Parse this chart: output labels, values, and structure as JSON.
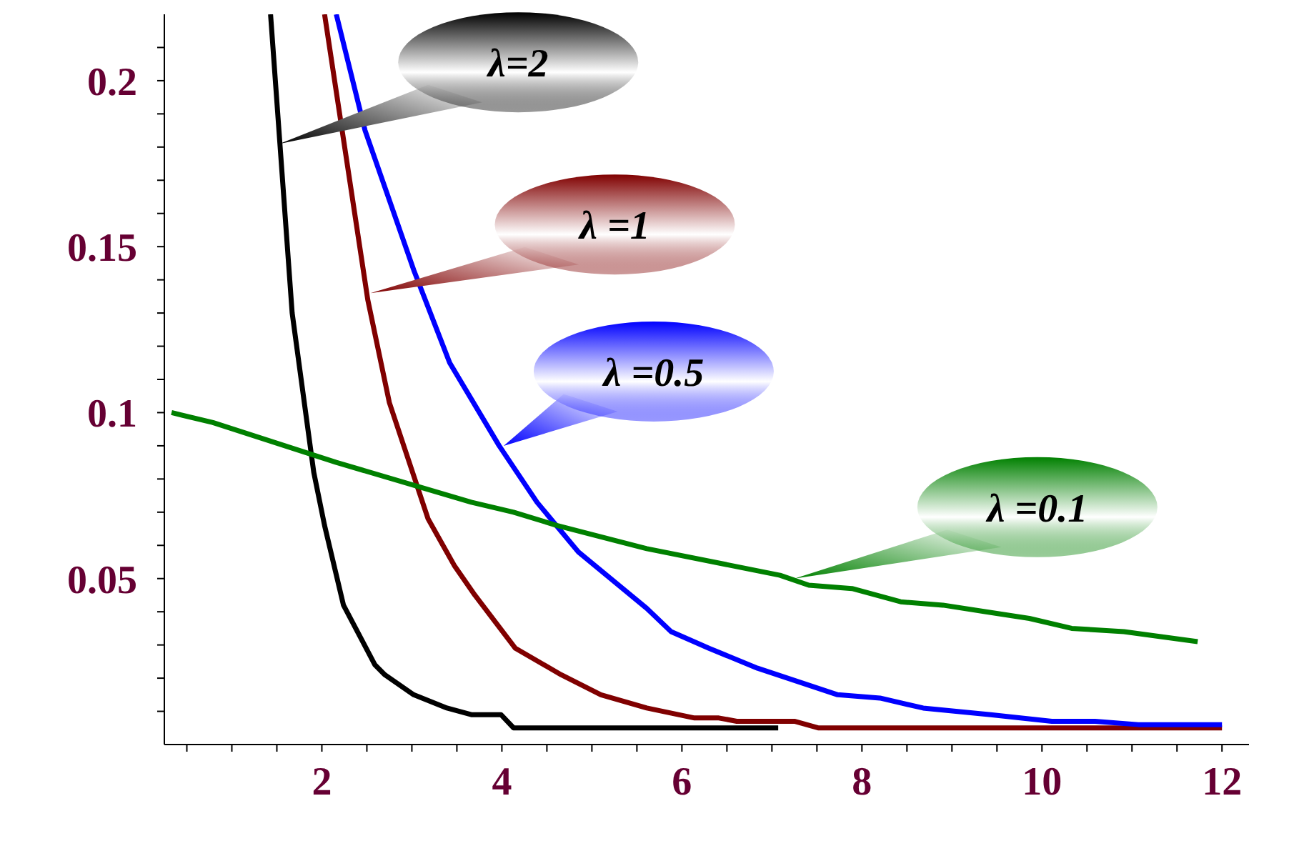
{
  "chart_data": {
    "type": "line",
    "xlim": [
      0.25,
      12.3
    ],
    "ylim": [
      0,
      0.22
    ],
    "xticks": [
      {
        "value": 0.5,
        "label": null
      },
      {
        "value": 1,
        "label": null
      },
      {
        "value": 1.5,
        "label": null
      },
      2,
      {
        "value": 2.5,
        "label": null
      },
      {
        "value": 3,
        "label": null
      },
      {
        "value": 3.5,
        "label": null
      },
      4,
      {
        "value": 4.5,
        "label": null
      },
      {
        "value": 5,
        "label": null
      },
      {
        "value": 5.5,
        "label": null
      },
      6,
      {
        "value": 6.5,
        "label": null
      },
      {
        "value": 7,
        "label": null
      },
      {
        "value": 7.5,
        "label": null
      },
      8,
      {
        "value": 8.5,
        "label": null
      },
      {
        "value": 9,
        "label": null
      },
      {
        "value": 9.5,
        "label": null
      },
      10,
      {
        "value": 10.5,
        "label": null
      },
      {
        "value": 11,
        "label": null
      },
      {
        "value": 11.5,
        "label": null
      },
      12
    ],
    "yticks": [
      {
        "value": 0.01,
        "label": null
      },
      {
        "value": 0.02,
        "label": null
      },
      {
        "value": 0.03,
        "label": null
      },
      {
        "value": 0.04,
        "label": null
      },
      0.05,
      {
        "value": 0.06,
        "label": null
      },
      {
        "value": 0.07,
        "label": null
      },
      {
        "value": 0.08,
        "label": null
      },
      {
        "value": 0.09,
        "label": null
      },
      0.1,
      {
        "value": 0.11,
        "label": null
      },
      {
        "value": 0.12,
        "label": null
      },
      {
        "value": 0.13,
        "label": null
      },
      {
        "value": 0.14,
        "label": null
      },
      0.15,
      {
        "value": 0.16,
        "label": null
      },
      {
        "value": 0.17,
        "label": null
      },
      {
        "value": 0.18,
        "label": null
      },
      {
        "value": 0.19,
        "label": null
      },
      0.2,
      {
        "value": 0.21,
        "label": null
      }
    ],
    "grid": false,
    "legend": false,
    "marker": "none",
    "line_style": "solid",
    "series": [
      {
        "color": "#000000",
        "x": [
          1.43,
          1.67,
          1.91,
          2.03,
          2.24,
          2.59,
          2.7,
          3.02,
          3.39,
          3.66,
          3.99,
          4.13,
          7.07
        ],
        "values": [
          0.22,
          0.13,
          0.082,
          0.066,
          0.042,
          0.024,
          0.021,
          0.015,
          0.011,
          0.009,
          0.009,
          0.005,
          0.005
        ]
      },
      {
        "color": "#800000",
        "x": [
          2.03,
          2.51,
          2.75,
          3.18,
          3.47,
          3.7,
          4.15,
          4.66,
          5.1,
          5.61,
          6.14,
          6.41,
          6.61,
          7.25,
          7.52,
          12.0
        ],
        "values": [
          0.22,
          0.134,
          0.103,
          0.068,
          0.054,
          0.045,
          0.029,
          0.021,
          0.015,
          0.011,
          0.008,
          0.008,
          0.007,
          0.007,
          0.005,
          0.005
        ]
      },
      {
        "color": "#0000ff",
        "x": [
          2.16,
          2.48,
          3.02,
          3.42,
          3.97,
          4.39,
          4.85,
          5.61,
          5.88,
          6.3,
          6.84,
          7.73,
          8.2,
          8.68,
          9.43,
          10.11,
          10.59,
          11.07,
          12.0
        ],
        "values": [
          0.22,
          0.185,
          0.143,
          0.115,
          0.09,
          0.073,
          0.058,
          0.041,
          0.034,
          0.029,
          0.023,
          0.015,
          0.014,
          0.011,
          0.009,
          0.007,
          0.007,
          0.006,
          0.006
        ]
      },
      {
        "color": "#008000",
        "x": [
          0.33,
          0.79,
          2.16,
          3.66,
          4.13,
          4.61,
          5.61,
          7.09,
          7.41,
          7.89,
          8.43,
          8.9,
          9.38,
          9.86,
          10.33,
          10.91,
          11.73
        ],
        "values": [
          0.1,
          0.097,
          0.085,
          0.073,
          0.07,
          0.066,
          0.059,
          0.051,
          0.048,
          0.047,
          0.043,
          0.042,
          0.04,
          0.038,
          0.035,
          0.034,
          0.031
        ]
      }
    ],
    "annotations": [
      {
        "text": "λ=2",
        "x": 1.53,
        "y": 0.181
      },
      {
        "text": "λ =1",
        "x": 2.54,
        "y": 0.136
      },
      {
        "text": "λ =0.5",
        "x": 4.02,
        "y": 0.09
      },
      {
        "text": "λ =0.1",
        "x": 7.25,
        "y": 0.05
      }
    ]
  }
}
